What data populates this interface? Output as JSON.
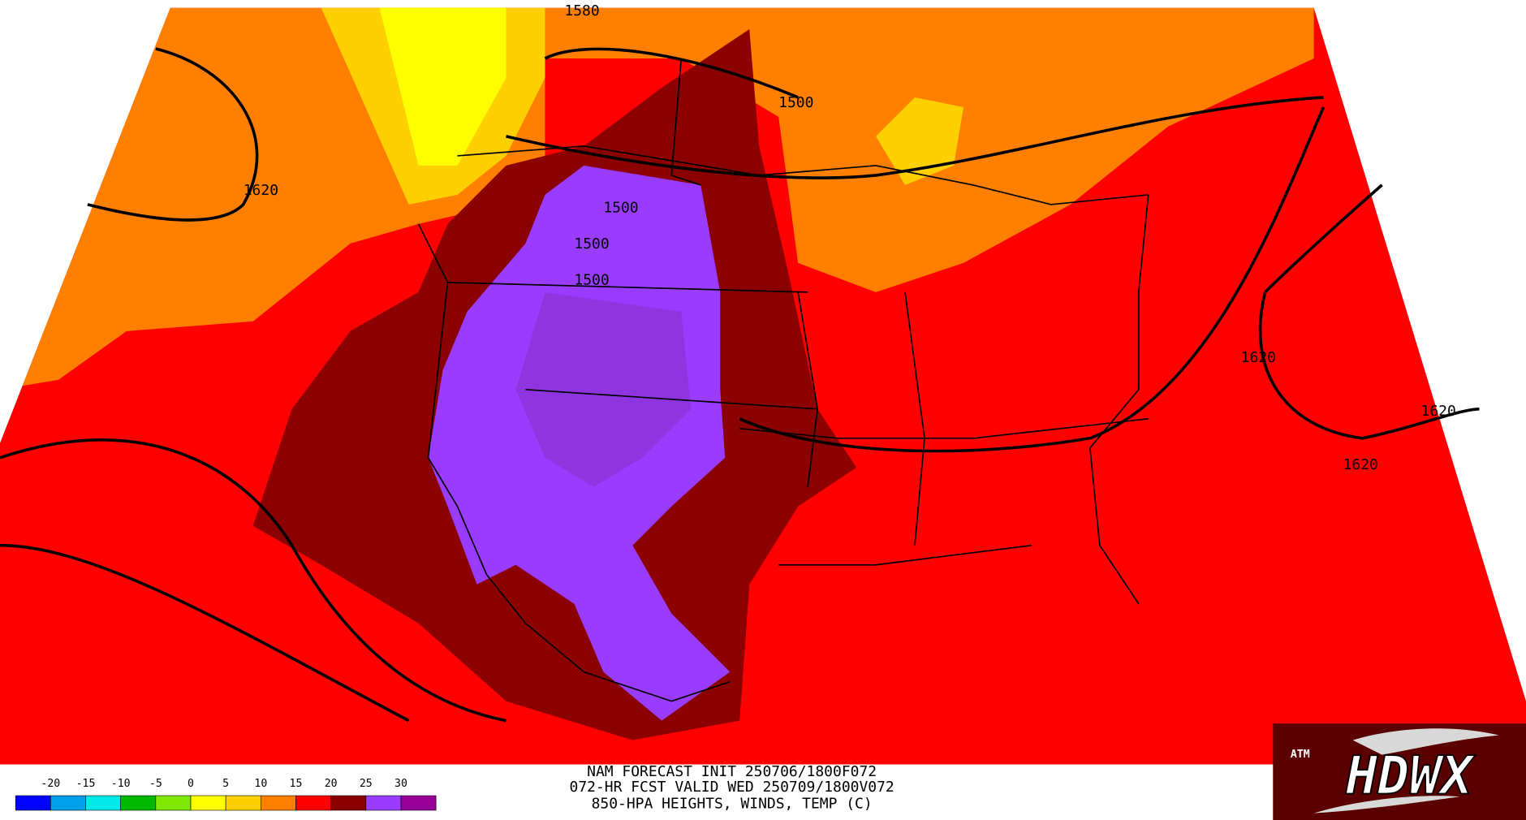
{
  "map": {
    "contour_labels": [
      "1620",
      "1500",
      "1580",
      "1500",
      "1500",
      "1500",
      "1620",
      "1620",
      "1620"
    ]
  },
  "legend": {
    "labels": [
      -20,
      -15,
      -10,
      -5,
      0,
      5,
      10,
      15,
      20,
      25,
      30
    ],
    "colors": [
      "#0000ff",
      "#00a0e8",
      "#00e8e8",
      "#00b800",
      "#80e800",
      "#ffff00",
      "#ffd000",
      "#ff8000",
      "#ff0000",
      "#8b0000",
      "#9a3cff",
      "#960096"
    ]
  },
  "caption": {
    "lines": [
      "NAM FORECAST INIT 250706/1800F072",
      "072-HR FCST VALID WED 250709/1800V072",
      "850-HPA HEIGHTS, WINDS, TEMP (C)"
    ]
  },
  "logo": {
    "text": "HDWX",
    "badge": "ATM"
  }
}
